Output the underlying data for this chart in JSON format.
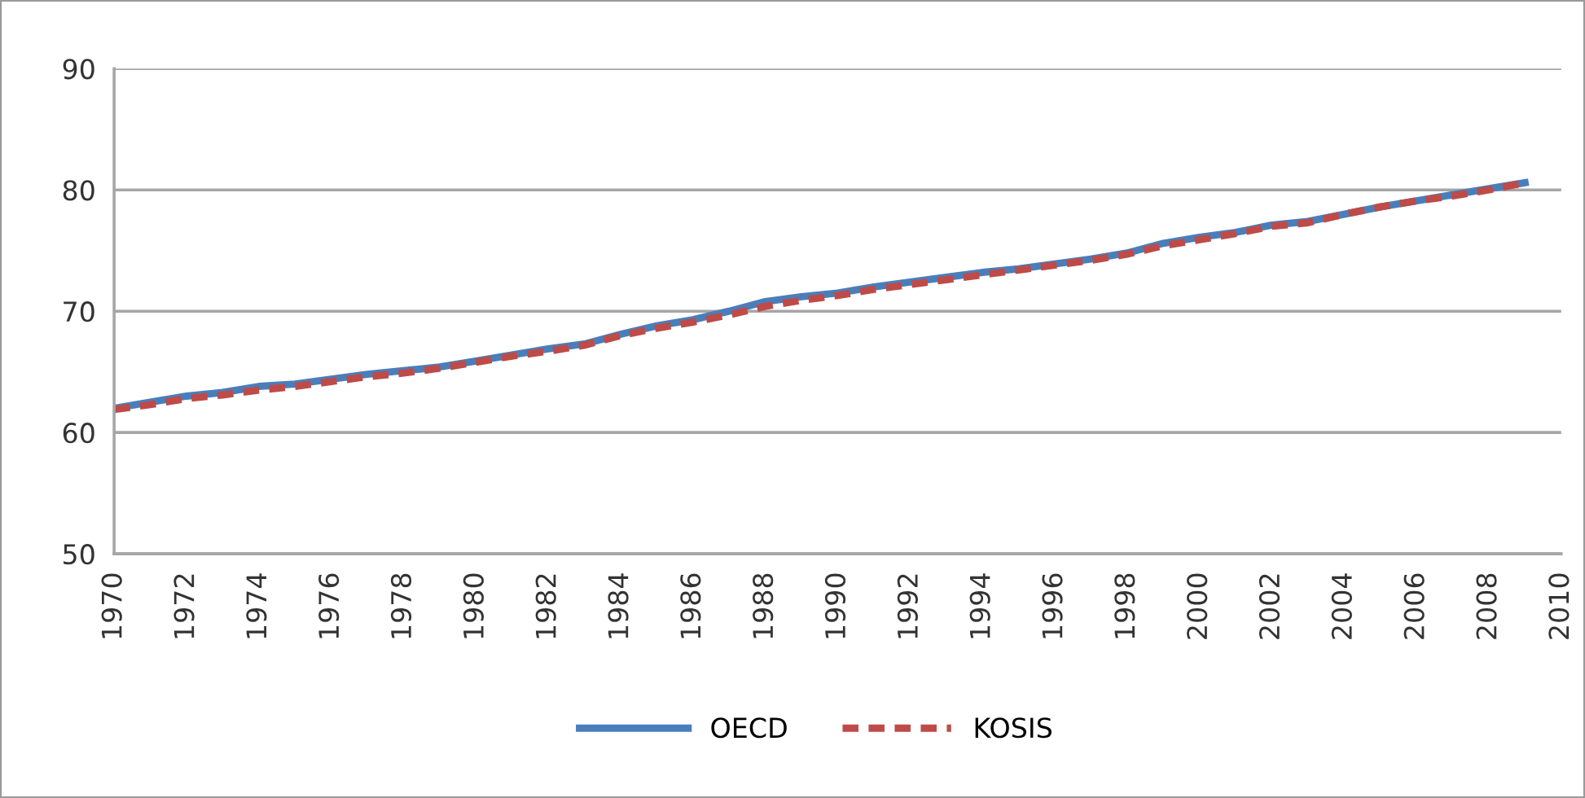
{
  "chart_data": {
    "type": "line",
    "x": [
      1970,
      1971,
      1972,
      1973,
      1974,
      1975,
      1976,
      1977,
      1978,
      1979,
      1980,
      1981,
      1982,
      1983,
      1984,
      1985,
      1986,
      1987,
      1988,
      1989,
      1990,
      1991,
      1992,
      1993,
      1994,
      1995,
      1996,
      1997,
      1998,
      1999,
      2000,
      2001,
      2002,
      2003,
      2004,
      2005,
      2006,
      2007,
      2008,
      2009
    ],
    "series": [
      {
        "name": "OECD",
        "color": "#4a7ebb",
        "line_style": "solid",
        "values": [
          62.0,
          62.5,
          63.0,
          63.3,
          63.8,
          64.0,
          64.4,
          64.8,
          65.1,
          65.4,
          65.9,
          66.4,
          66.9,
          67.3,
          68.1,
          68.8,
          69.3,
          70.0,
          70.8,
          71.2,
          71.5,
          72.0,
          72.4,
          72.8,
          73.2,
          73.5,
          73.9,
          74.3,
          74.8,
          75.6,
          76.1,
          76.5,
          77.1,
          77.4,
          78.0,
          78.6,
          79.1,
          79.6,
          80.1,
          80.6
        ]
      },
      {
        "name": "KOSIS",
        "color": "#be4b48",
        "line_style": "dashed",
        "values": [
          61.9,
          62.3,
          62.8,
          63.1,
          63.5,
          63.8,
          64.2,
          64.6,
          64.9,
          65.3,
          65.8,
          66.3,
          66.7,
          67.2,
          68.0,
          68.6,
          69.1,
          69.7,
          70.4,
          70.9,
          71.3,
          71.8,
          72.2,
          72.6,
          73.0,
          73.4,
          73.8,
          74.2,
          74.7,
          75.4,
          75.9,
          76.4,
          77.0,
          77.3,
          78.0,
          78.6,
          79.1,
          79.5,
          80.0,
          80.6
        ]
      }
    ],
    "xlim": [
      1970,
      2010
    ],
    "xticks": [
      1970,
      1972,
      1974,
      1976,
      1978,
      1980,
      1982,
      1984,
      1986,
      1988,
      1990,
      1992,
      1994,
      1996,
      1998,
      2000,
      2002,
      2004,
      2006,
      2008,
      2010
    ],
    "ylim": [
      50,
      90
    ],
    "yticks": [
      50,
      60,
      70,
      80,
      90
    ],
    "grid": "y",
    "legend": "bottom",
    "marker": "none"
  }
}
